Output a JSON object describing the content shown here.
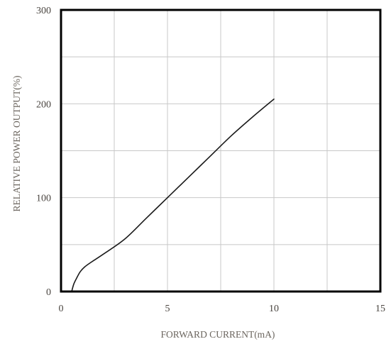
{
  "chart_data": {
    "type": "line",
    "title": "",
    "xlabel": "FORWARD CURRENT(mA)",
    "ylabel": "RELATIVE POWER OUTPUT(%)",
    "xlim": [
      0,
      15
    ],
    "ylim": [
      0,
      300
    ],
    "x_ticks": [
      "0",
      "5",
      "10",
      "15"
    ],
    "y_ticks": [
      "0",
      "100",
      "200",
      "300"
    ],
    "grid": true,
    "grid_x": [
      2.5,
      5,
      7.5,
      10,
      12.5
    ],
    "grid_y": [
      50,
      100,
      150,
      200,
      250
    ],
    "legend": "none",
    "line_color": "#1a1a1a",
    "frame_color": "#000000",
    "grid_color": "#c8c8c8",
    "series": [
      {
        "x": [
          0.5,
          0.6,
          0.75,
          0.9,
          1.1,
          1.4,
          2.0,
          3.0,
          4.0,
          5.0,
          6.0,
          7.0,
          8.0,
          9.0,
          10.0
        ],
        "values": [
          0,
          8,
          15,
          21,
          26,
          31,
          40,
          56,
          78,
          100,
          122,
          144,
          166,
          186,
          205
        ]
      }
    ]
  }
}
